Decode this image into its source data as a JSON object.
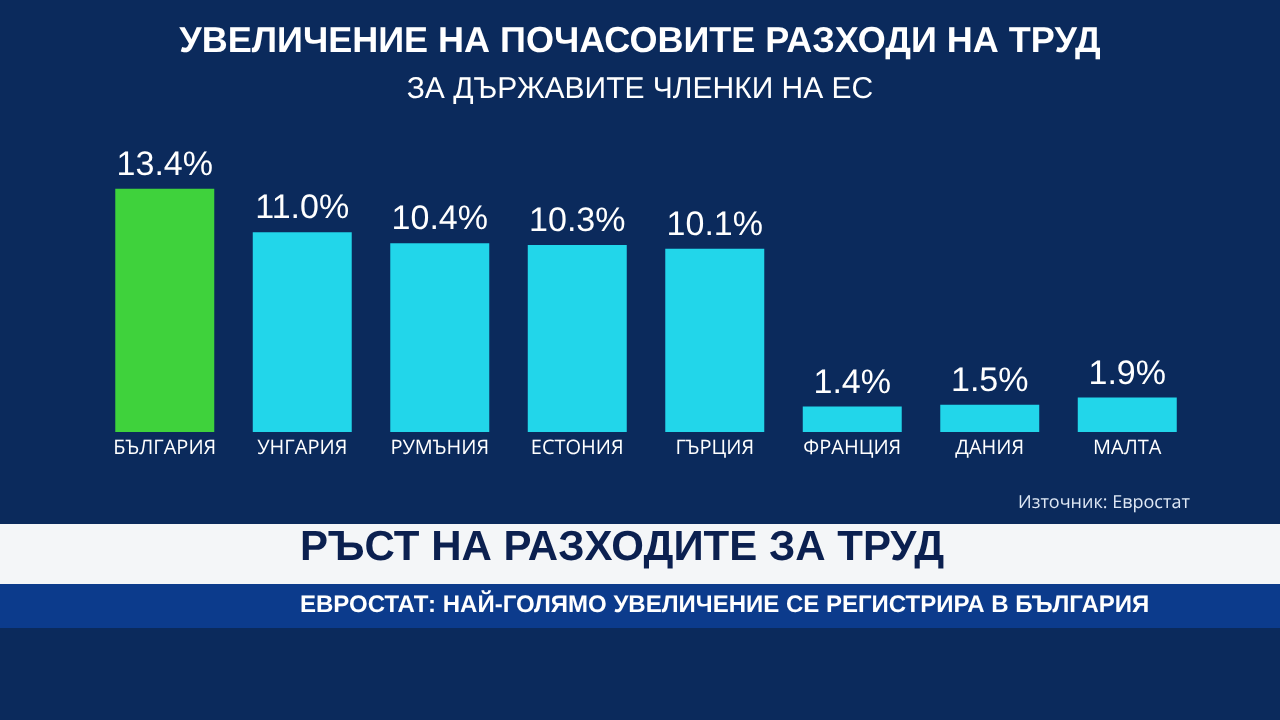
{
  "chart_data": {
    "type": "bar",
    "title": "УВЕЛИЧЕНИЕ НА ПОЧАСОВИТЕ РАЗХОДИ НА ТРУД",
    "subtitle": "ЗА ДЪРЖАВИТЕ ЧЛЕНКИ НА ЕС",
    "categories": [
      "БЪЛГАРИЯ",
      "УНГАРИЯ",
      "РУМЪНИЯ",
      "ЕСТОНИЯ",
      "ГЪРЦИЯ",
      "ФРАНЦИЯ",
      "ДАНИЯ",
      "МАЛТА"
    ],
    "values": [
      13.4,
      11.0,
      10.4,
      10.3,
      10.1,
      1.4,
      1.5,
      1.9
    ],
    "value_labels": [
      "13.4%",
      "11.0%",
      "10.4%",
      "10.3%",
      "10.1%",
      "1.4%",
      "1.5%",
      "1.9%"
    ],
    "colors": [
      "#3fd23c",
      "#22d6ea",
      "#22d6ea",
      "#22d6ea",
      "#22d6ea",
      "#22d6ea",
      "#22d6ea",
      "#22d6ea"
    ],
    "annotations": [
      "Източник: Евростат",
      "РЪСТ НА РАЗХОДИТЕ ЗА ТРУД",
      "ЕВРОСТАТ: НАЙ-ГОЛЯМО УВЕЛИЧЕНИЕ СЕ РЕГИСТРИРА В БЪЛГАРИЯ"
    ],
    "tick_labels": "x",
    "legend": false
  }
}
